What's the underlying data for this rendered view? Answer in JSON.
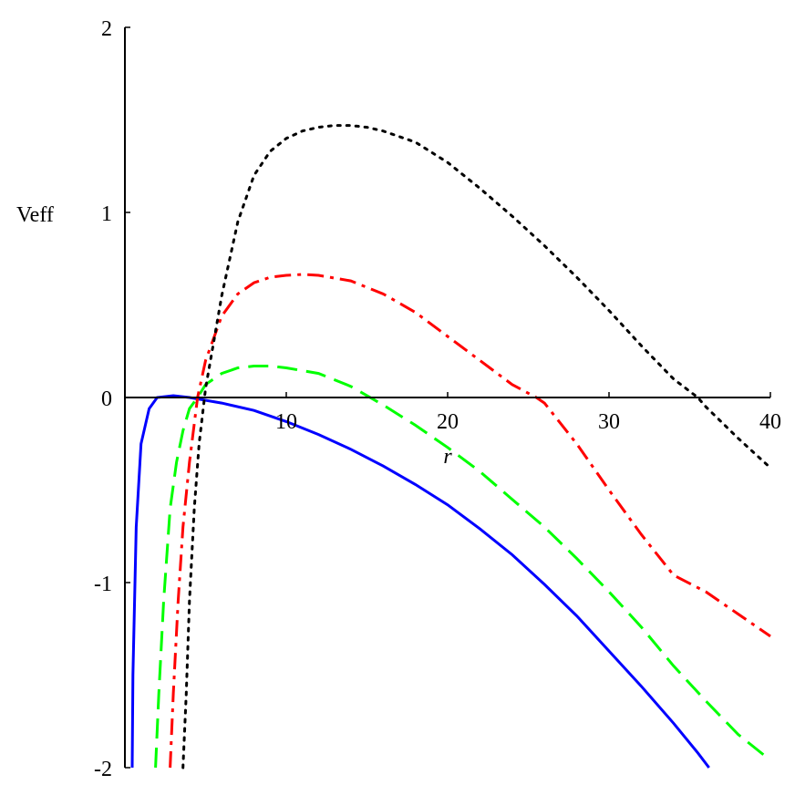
{
  "chart_data": {
    "type": "line",
    "xlabel": "r",
    "ylabel": "Veff",
    "xlim": [
      0,
      40
    ],
    "ylim": [
      -2,
      2
    ],
    "x_ticks": [
      10,
      20,
      30,
      40
    ],
    "x_tick_labels": [
      "10",
      "20",
      "30",
      "40"
    ],
    "y_ticks": [
      -2,
      -1,
      0,
      1,
      2
    ],
    "y_tick_labels": [
      "-2",
      "-1",
      "0",
      "1",
      "2"
    ],
    "grid": false,
    "series": [
      {
        "style": "solid",
        "color": "#0000ff",
        "points": [
          [
            0.45,
            -2.0
          ],
          [
            0.5,
            -1.5
          ],
          [
            0.7,
            -0.7
          ],
          [
            1.0,
            -0.25
          ],
          [
            1.5,
            -0.06
          ],
          [
            2.0,
            0.0
          ],
          [
            3.0,
            0.01
          ],
          [
            4.0,
            0.0
          ],
          [
            6.0,
            -0.03
          ],
          [
            8.0,
            -0.07
          ],
          [
            10.0,
            -0.13
          ],
          [
            12.0,
            -0.2
          ],
          [
            14.0,
            -0.28
          ],
          [
            16.0,
            -0.37
          ],
          [
            18.0,
            -0.47
          ],
          [
            20.0,
            -0.58
          ],
          [
            22.0,
            -0.71
          ],
          [
            24.0,
            -0.85
          ],
          [
            26.0,
            -1.01
          ],
          [
            28.0,
            -1.18
          ],
          [
            30.0,
            -1.37
          ],
          [
            32.0,
            -1.56
          ],
          [
            34.0,
            -1.76
          ],
          [
            35.5,
            -1.92
          ],
          [
            36.2,
            -2.0
          ]
        ]
      },
      {
        "style": "dashed",
        "color": "#00ff00",
        "points": [
          [
            1.9,
            -2.0
          ],
          [
            2.1,
            -1.6
          ],
          [
            2.4,
            -1.1
          ],
          [
            2.8,
            -0.6
          ],
          [
            3.2,
            -0.35
          ],
          [
            3.6,
            -0.18
          ],
          [
            4.0,
            -0.06
          ],
          [
            4.5,
            0.0
          ],
          [
            5.0,
            0.07
          ],
          [
            6.0,
            0.13
          ],
          [
            7.0,
            0.16
          ],
          [
            8.0,
            0.17
          ],
          [
            9.0,
            0.17
          ],
          [
            10.0,
            0.16
          ],
          [
            12.0,
            0.13
          ],
          [
            14.0,
            0.06
          ],
          [
            16.0,
            -0.04
          ],
          [
            18.0,
            -0.15
          ],
          [
            20.0,
            -0.27
          ],
          [
            22.0,
            -0.4
          ],
          [
            24.0,
            -0.55
          ],
          [
            26.0,
            -0.7
          ],
          [
            28.0,
            -0.87
          ],
          [
            30.0,
            -1.05
          ],
          [
            32.0,
            -1.24
          ],
          [
            34.0,
            -1.45
          ],
          [
            36.0,
            -1.64
          ],
          [
            38.0,
            -1.82
          ],
          [
            40.0,
            -1.96
          ]
        ]
      },
      {
        "style": "dashdot",
        "color": "#ff0000",
        "points": [
          [
            2.8,
            -2.0
          ],
          [
            3.0,
            -1.6
          ],
          [
            3.3,
            -1.1
          ],
          [
            3.6,
            -0.7
          ],
          [
            4.0,
            -0.35
          ],
          [
            4.5,
            0.0
          ],
          [
            5.0,
            0.2
          ],
          [
            6.0,
            0.44
          ],
          [
            7.0,
            0.56
          ],
          [
            8.0,
            0.62
          ],
          [
            9.0,
            0.65
          ],
          [
            10.0,
            0.66
          ],
          [
            11.0,
            0.665
          ],
          [
            12.0,
            0.66
          ],
          [
            14.0,
            0.63
          ],
          [
            16.0,
            0.56
          ],
          [
            18.0,
            0.46
          ],
          [
            20.0,
            0.33
          ],
          [
            22.0,
            0.2
          ],
          [
            24.0,
            0.07
          ],
          [
            25.5,
            0.0
          ],
          [
            26.0,
            -0.03
          ],
          [
            28.0,
            -0.25
          ],
          [
            30.0,
            -0.5
          ],
          [
            32.0,
            -0.74
          ],
          [
            34.0,
            -0.96
          ],
          [
            36.0,
            -1.05
          ],
          [
            38.0,
            -1.17
          ],
          [
            40.0,
            -1.29
          ]
        ]
      },
      {
        "style": "dotted",
        "color": "#000000",
        "points": [
          [
            3.6,
            -2.0
          ],
          [
            3.8,
            -1.6
          ],
          [
            4.0,
            -1.1
          ],
          [
            4.3,
            -0.6
          ],
          [
            4.6,
            -0.25
          ],
          [
            5.0,
            0.05
          ],
          [
            5.5,
            0.3
          ],
          [
            6.0,
            0.55
          ],
          [
            7.0,
            0.95
          ],
          [
            8.0,
            1.2
          ],
          [
            9.0,
            1.33
          ],
          [
            10.0,
            1.4
          ],
          [
            11.0,
            1.44
          ],
          [
            12.0,
            1.46
          ],
          [
            13.0,
            1.47
          ],
          [
            14.0,
            1.47
          ],
          [
            15.0,
            1.46
          ],
          [
            16.0,
            1.44
          ],
          [
            18.0,
            1.38
          ],
          [
            20.0,
            1.27
          ],
          [
            22.0,
            1.13
          ],
          [
            24.0,
            0.98
          ],
          [
            26.0,
            0.82
          ],
          [
            28.0,
            0.65
          ],
          [
            30.0,
            0.47
          ],
          [
            32.0,
            0.28
          ],
          [
            34.0,
            0.1
          ],
          [
            35.5,
            0.0
          ],
          [
            36.0,
            -0.05
          ],
          [
            38.0,
            -0.22
          ],
          [
            40.0,
            -0.38
          ]
        ]
      }
    ]
  }
}
